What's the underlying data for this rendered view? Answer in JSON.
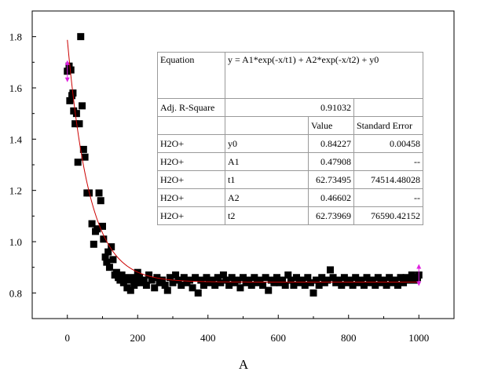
{
  "chart_data": {
    "type": "scatter",
    "title": "",
    "xlabel": "A",
    "ylabel": "",
    "xlim": [
      -100,
      1100
    ],
    "ylim": [
      0.7,
      1.9
    ],
    "x_ticks": [
      0,
      200,
      400,
      600,
      800,
      1000
    ],
    "y_ticks": [
      0.8,
      1.0,
      1.2,
      1.4,
      1.6,
      1.8
    ],
    "x_tick_labels": [
      "0",
      "200",
      "400",
      "600",
      "800",
      "1000"
    ],
    "y_tick_labels": [
      "0.8",
      "1.0",
      "1.2",
      "1.4",
      "1.6",
      "1.8"
    ],
    "grid": false,
    "series": [
      {
        "type": "scatter",
        "marker": "square",
        "color": "#000000",
        "points": [
          [
            0,
            1.665
          ],
          [
            5,
            1.685
          ],
          [
            7,
            1.55
          ],
          [
            10,
            1.67
          ],
          [
            13,
            1.57
          ],
          [
            16,
            1.58
          ],
          [
            18,
            1.51
          ],
          [
            22,
            1.46
          ],
          [
            26,
            1.5
          ],
          [
            30,
            1.31
          ],
          [
            34,
            1.46
          ],
          [
            38,
            1.8
          ],
          [
            42,
            1.53
          ],
          [
            46,
            1.36
          ],
          [
            50,
            1.33
          ],
          [
            56,
            1.19
          ],
          [
            62,
            1.19
          ],
          [
            70,
            1.07
          ],
          [
            75,
            0.99
          ],
          [
            80,
            1.04
          ],
          [
            85,
            1.05
          ],
          [
            90,
            1.19
          ],
          [
            95,
            1.16
          ],
          [
            100,
            1.06
          ],
          [
            103,
            1.01
          ],
          [
            108,
            0.94
          ],
          [
            112,
            0.92
          ],
          [
            116,
            0.96
          ],
          [
            120,
            0.9
          ],
          [
            125,
            0.98
          ],
          [
            130,
            0.93
          ],
          [
            135,
            0.87
          ],
          [
            140,
            0.88
          ],
          [
            145,
            0.86
          ],
          [
            150,
            0.85
          ],
          [
            155,
            0.87
          ],
          [
            160,
            0.84
          ],
          [
            165,
            0.86
          ],
          [
            170,
            0.82
          ],
          [
            175,
            0.85
          ],
          [
            180,
            0.81
          ],
          [
            185,
            0.86
          ],
          [
            190,
            0.83
          ],
          [
            195,
            0.84
          ],
          [
            200,
            0.88
          ],
          [
            205,
            0.86
          ],
          [
            210,
            0.84
          ],
          [
            218,
            0.85
          ],
          [
            225,
            0.83
          ],
          [
            232,
            0.87
          ],
          [
            240,
            0.85
          ],
          [
            248,
            0.82
          ],
          [
            255,
            0.86
          ],
          [
            262,
            0.84
          ],
          [
            270,
            0.85
          ],
          [
            278,
            0.83
          ],
          [
            285,
            0.81
          ],
          [
            292,
            0.86
          ],
          [
            300,
            0.84
          ],
          [
            308,
            0.87
          ],
          [
            316,
            0.85
          ],
          [
            324,
            0.83
          ],
          [
            332,
            0.86
          ],
          [
            340,
            0.84
          ],
          [
            348,
            0.85
          ],
          [
            356,
            0.82
          ],
          [
            364,
            0.86
          ],
          [
            372,
            0.8
          ],
          [
            380,
            0.85
          ],
          [
            388,
            0.83
          ],
          [
            396,
            0.86
          ],
          [
            404,
            0.84
          ],
          [
            412,
            0.85
          ],
          [
            420,
            0.83
          ],
          [
            428,
            0.86
          ],
          [
            436,
            0.84
          ],
          [
            444,
            0.87
          ],
          [
            452,
            0.85
          ],
          [
            460,
            0.83
          ],
          [
            468,
            0.86
          ],
          [
            476,
            0.84
          ],
          [
            484,
            0.85
          ],
          [
            492,
            0.82
          ],
          [
            500,
            0.86
          ],
          [
            508,
            0.84
          ],
          [
            516,
            0.85
          ],
          [
            524,
            0.83
          ],
          [
            532,
            0.86
          ],
          [
            540,
            0.84
          ],
          [
            548,
            0.85
          ],
          [
            556,
            0.83
          ],
          [
            564,
            0.86
          ],
          [
            572,
            0.81
          ],
          [
            580,
            0.85
          ],
          [
            588,
            0.84
          ],
          [
            596,
            0.86
          ],
          [
            604,
            0.84
          ],
          [
            612,
            0.85
          ],
          [
            620,
            0.83
          ],
          [
            628,
            0.87
          ],
          [
            636,
            0.85
          ],
          [
            644,
            0.83
          ],
          [
            652,
            0.86
          ],
          [
            660,
            0.84
          ],
          [
            668,
            0.85
          ],
          [
            676,
            0.83
          ],
          [
            684,
            0.86
          ],
          [
            692,
            0.84
          ],
          [
            700,
            0.8
          ],
          [
            708,
            0.85
          ],
          [
            716,
            0.83
          ],
          [
            724,
            0.86
          ],
          [
            732,
            0.84
          ],
          [
            740,
            0.85
          ],
          [
            748,
            0.89
          ],
          [
            756,
            0.86
          ],
          [
            764,
            0.84
          ],
          [
            772,
            0.85
          ],
          [
            780,
            0.83
          ],
          [
            788,
            0.86
          ],
          [
            796,
            0.84
          ],
          [
            804,
            0.85
          ],
          [
            812,
            0.83
          ],
          [
            820,
            0.86
          ],
          [
            828,
            0.84
          ],
          [
            836,
            0.85
          ],
          [
            844,
            0.83
          ],
          [
            852,
            0.86
          ],
          [
            860,
            0.84
          ],
          [
            868,
            0.85
          ],
          [
            876,
            0.83
          ],
          [
            884,
            0.86
          ],
          [
            892,
            0.84
          ],
          [
            900,
            0.85
          ],
          [
            908,
            0.83
          ],
          [
            916,
            0.86
          ],
          [
            924,
            0.84
          ],
          [
            932,
            0.85
          ],
          [
            940,
            0.83
          ],
          [
            948,
            0.86
          ],
          [
            956,
            0.84
          ],
          [
            964,
            0.86
          ],
          [
            972,
            0.85
          ],
          [
            980,
            0.87
          ],
          [
            988,
            0.85
          ],
          [
            996,
            0.86
          ],
          [
            1000,
            0.87
          ]
        ]
      },
      {
        "type": "line",
        "style": "fit-curve",
        "color": "#cc0000",
        "fit": {
          "y0": 0.84227,
          "A1": 0.47908,
          "t1": 62.73495,
          "A2": 0.46602,
          "t2": 62.73969,
          "x_start": 0,
          "x_end": 1000
        }
      }
    ],
    "error_markers": [
      {
        "x": 0,
        "y": 1.665,
        "color": "#e020e0"
      },
      {
        "x": 1000,
        "y": 0.87,
        "color": "#e020e0"
      }
    ],
    "annotation_table": {
      "equation_label": "Equation",
      "equation": "y = A1*exp(-x/t1) + A2*exp(-x/t2) + y0",
      "r2_label": "Adj. R-Square",
      "r2_value": "0.91032",
      "col_value": "Value",
      "col_error": "Standard Error",
      "rows": [
        {
          "series": "H2O+",
          "param": "y0",
          "value": "0.84227",
          "error": "0.00458"
        },
        {
          "series": "H2O+",
          "param": "A1",
          "value": "0.47908",
          "error": "--"
        },
        {
          "series": "H2O+",
          "param": "t1",
          "value": "62.73495",
          "error": "74514.48028"
        },
        {
          "series": "H2O+",
          "param": "A2",
          "value": "0.46602",
          "error": "--"
        },
        {
          "series": "H2O+",
          "param": "t2",
          "value": "62.73969",
          "error": "76590.42152"
        }
      ]
    }
  }
}
